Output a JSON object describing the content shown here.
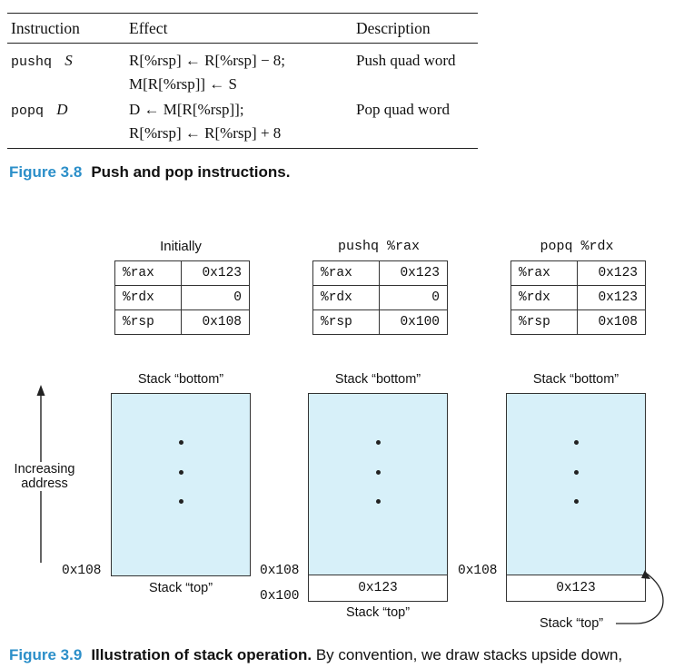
{
  "table": {
    "headers": [
      "Instruction",
      "Effect",
      "Description"
    ],
    "rows": [
      {
        "instr_mnemonic": "pushq",
        "instr_operand": "S",
        "effect_line1": "R[%rsp] ← R[%rsp] − 8;",
        "effect_line2": "M[R[%rsp]] ← S",
        "description": "Push quad word"
      },
      {
        "instr_mnemonic": "popq",
        "instr_operand": "D",
        "effect_line1": "D ← M[R[%rsp]];",
        "effect_line2": "R[%rsp] ← R[%rsp] + 8",
        "description": "Pop quad word"
      }
    ]
  },
  "fig38": {
    "number": "Figure 3.8",
    "title": "Push and pop instructions."
  },
  "panels": [
    {
      "title": "Initially",
      "registers": [
        {
          "name": "%rax",
          "value": "0x123"
        },
        {
          "name": "%rdx",
          "value": "0"
        },
        {
          "name": "%rsp",
          "value": "0x108"
        }
      ],
      "bottom_label": "Stack “bottom”",
      "top_label": "Stack “top”",
      "addr_top": "0x108"
    },
    {
      "title": "pushq %rax",
      "registers": [
        {
          "name": "%rax",
          "value": "0x123"
        },
        {
          "name": "%rdx",
          "value": "0"
        },
        {
          "name": "%rsp",
          "value": "0x100"
        }
      ],
      "bottom_label": "Stack “bottom”",
      "top_label": "Stack “top”",
      "addr_top": "0x108",
      "addr_bottom": "0x100",
      "slot_value": "0x123"
    },
    {
      "title": "popq %rdx",
      "registers": [
        {
          "name": "%rax",
          "value": "0x123"
        },
        {
          "name": "%rdx",
          "value": "0x123"
        },
        {
          "name": "%rsp",
          "value": "0x108"
        }
      ],
      "bottom_label": "Stack “bottom”",
      "top_label": "Stack “top”",
      "addr_top": "0x108",
      "slot_value": "0x123"
    }
  ],
  "axis_label_line1": "Increasing",
  "axis_label_line2": "address",
  "fig39": {
    "number": "Figure 3.9",
    "title": "Illustration of stack operation.",
    "rest": "By convention, we draw stacks upside down,"
  }
}
